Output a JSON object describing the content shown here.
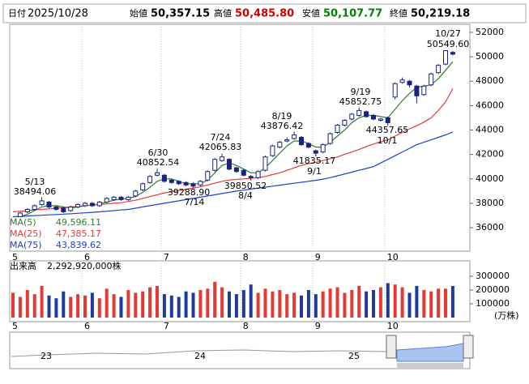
{
  "header": {
    "date_label": "日付",
    "date": "2025/10/28",
    "items": [
      {
        "label": "始値",
        "value": "50,357.15",
        "color": "#000000"
      },
      {
        "label": "高値",
        "value": "50,485.80",
        "color": "#d00000"
      },
      {
        "label": "安値",
        "value": "50,107.77",
        "color": "#008000"
      },
      {
        "label": "終値",
        "value": "50,219.18",
        "color": "#000000"
      }
    ]
  },
  "chart_data": {
    "type": "candlestick",
    "categories": [
      "5",
      null,
      null,
      null,
      null,
      null,
      null,
      null,
      null,
      null,
      "6",
      null,
      null,
      null,
      null,
      null,
      null,
      null,
      null,
      null,
      null,
      "7",
      null,
      null,
      null,
      null,
      null,
      null,
      null,
      null,
      null,
      null,
      "8",
      null,
      null,
      null,
      null,
      null,
      null,
      null,
      null,
      null,
      "9",
      null,
      null,
      null,
      null,
      null,
      null,
      null,
      null,
      null,
      "10",
      null,
      null,
      null,
      null,
      null,
      null,
      null,
      null,
      null
    ],
    "open": [
      36600,
      36900,
      37300,
      37500,
      37900,
      38100,
      37700,
      37600,
      37400,
      37700,
      37800,
      38000,
      37800,
      38100,
      38300,
      38500,
      38300,
      38600,
      39100,
      39700,
      40300,
      40300,
      39900,
      39800,
      39700,
      39600,
      39500,
      39900,
      40700,
      41500,
      41600,
      40900,
      40700,
      40200,
      40100,
      40700,
      41900,
      42600,
      43100,
      43300,
      43400,
      42900,
      42300,
      42200,
      42900,
      43800,
      44400,
      44900,
      45200,
      45500,
      45200,
      44800,
      45000,
      46700,
      47900,
      48000,
      47600,
      46900,
      47700,
      48700,
      49400,
      50357.15
    ],
    "high": [
      36900,
      37300,
      37600,
      37900,
      38494.06,
      38200,
      37800,
      37700,
      37800,
      38000,
      38100,
      38100,
      38200,
      38500,
      38600,
      38600,
      38600,
      39100,
      39700,
      40300,
      40852.54,
      40400,
      40000,
      39900,
      39800,
      39700,
      39900,
      40700,
      41700,
      42065.83,
      41700,
      41000,
      40800,
      40300,
      40700,
      41900,
      42800,
      43100,
      43400,
      43876.42,
      43500,
      43000,
      42400,
      42900,
      43800,
      44500,
      44900,
      45400,
      45852.75,
      45600,
      45300,
      45000,
      45100,
      47900,
      48300,
      48100,
      47700,
      47700,
      48700,
      49400,
      50549.6,
      50485.8
    ],
    "low": [
      36400,
      36800,
      37200,
      37400,
      37800,
      37600,
      37400,
      37200,
      37300,
      37600,
      37700,
      37700,
      37700,
      38000,
      38200,
      38200,
      38200,
      38500,
      39000,
      39600,
      40200,
      39700,
      39600,
      39500,
      39400,
      39288.9,
      39400,
      39800,
      40600,
      41400,
      40700,
      40500,
      40200,
      39850.52,
      40000,
      40600,
      41800,
      42500,
      43000,
      43200,
      42700,
      42500,
      41835.17,
      42100,
      42800,
      43700,
      44300,
      44800,
      45100,
      45000,
      44800,
      44700,
      44357.65,
      46500,
      47800,
      47500,
      46200,
      46800,
      47600,
      48600,
      49300,
      50107.77
    ],
    "close": [
      36800,
      37200,
      37500,
      37800,
      38200,
      37700,
      37500,
      37300,
      37700,
      37900,
      38000,
      37800,
      38100,
      38400,
      38500,
      38300,
      38500,
      39000,
      39600,
      40200,
      40500,
      39800,
      39700,
      39600,
      39500,
      39400,
      39800,
      40600,
      41600,
      41800,
      40800,
      40600,
      40300,
      40100,
      40600,
      41800,
      42700,
      43000,
      43200,
      43600,
      42800,
      42600,
      42100,
      42800,
      43700,
      44400,
      44800,
      45300,
      45600,
      45100,
      44900,
      44900,
      44600,
      47800,
      48100,
      47700,
      46800,
      47600,
      48600,
      49300,
      50500,
      50219.18
    ],
    "ylim": [
      34080,
      52660
    ],
    "yticks": [
      36000,
      38000,
      40000,
      42000,
      44000,
      46000,
      48000,
      50000,
      52000
    ],
    "up_color": "#ffffff",
    "down_color": "#1a237e",
    "series": [
      {
        "name": "MA(5)",
        "value_label": "49,596.11",
        "color": "#2e7d32",
        "values": [
          36700,
          36900,
          37100,
          37400,
          37700,
          37800,
          37800,
          37700,
          37600,
          37700,
          37800,
          37850,
          37950,
          38100,
          38250,
          38350,
          38400,
          38550,
          38900,
          39300,
          39800,
          40000,
          40000,
          39800,
          39600,
          39600,
          39600,
          39900,
          40500,
          41100,
          41300,
          41100,
          40800,
          40500,
          40500,
          40900,
          41500,
          42100,
          42700,
          43100,
          43100,
          42900,
          42600,
          42600,
          43000,
          43500,
          44000,
          44600,
          45000,
          45200,
          45200,
          45100,
          45000,
          45700,
          46400,
          47000,
          47500,
          47600,
          47700,
          48200,
          48900,
          49596.11
        ]
      },
      {
        "name": "MA(25)",
        "value_label": "47,385.17",
        "color": "#e53935",
        "values": [
          37300,
          37350,
          37400,
          37450,
          37500,
          37550,
          37600,
          37650,
          37700,
          37750,
          37800,
          37850,
          37900,
          37950,
          38000,
          38050,
          38150,
          38250,
          38400,
          38550,
          38700,
          38850,
          38950,
          39050,
          39150,
          39250,
          39350,
          39500,
          39650,
          39800,
          39900,
          39950,
          40000,
          40050,
          40100,
          40200,
          40350,
          40500,
          40700,
          40900,
          41100,
          41250,
          41350,
          41500,
          41650,
          41800,
          42000,
          42200,
          42400,
          42650,
          42850,
          43050,
          43200,
          43500,
          43800,
          44100,
          44350,
          44650,
          45000,
          45600,
          46300,
          47385.17
        ]
      },
      {
        "name": "MA(75)",
        "value_label": "43,839.62",
        "color": "#1e40d0",
        "values": [
          36900,
          36930,
          36960,
          36990,
          37020,
          37050,
          37080,
          37110,
          37140,
          37180,
          37220,
          37260,
          37300,
          37350,
          37400,
          37450,
          37500,
          37600,
          37700,
          37800,
          37900,
          38000,
          38100,
          38200,
          38300,
          38400,
          38500,
          38600,
          38700,
          38800,
          38900,
          39000,
          39080,
          39160,
          39240,
          39320,
          39400,
          39480,
          39560,
          39640,
          39720,
          39800,
          39880,
          39980,
          40100,
          40250,
          40400,
          40550,
          40700,
          40850,
          41000,
          41300,
          41600,
          41900,
          42200,
          42500,
          42800,
          43000,
          43200,
          43400,
          43600,
          43839.62
        ]
      }
    ],
    "annotations": [
      {
        "date": "5/13",
        "text": "38494.06"
      },
      {
        "date": "6/30",
        "text": "40852.54"
      },
      {
        "date": "7/24",
        "text": "42065.83"
      },
      {
        "date": "8/19",
        "text": "43876.42"
      },
      {
        "date": "9/19",
        "text": "45852.75"
      },
      {
        "date": "10/27",
        "text": "50549.60"
      },
      {
        "date": "7/14",
        "text": "39288.90"
      },
      {
        "date": "8/4",
        "text": "39850.52"
      },
      {
        "date": "9/1",
        "text": "41835.17"
      },
      {
        "date": "10/1",
        "text": "44357.65"
      }
    ],
    "volume": {
      "title": "出来高",
      "total": "2,292,920,000株",
      "unit": "(万株)",
      "ylim": [
        0,
        411765
      ],
      "yticks": [
        100000,
        200000,
        300000
      ],
      "up_color": "#e53935",
      "down_color": "#1e3a9e",
      "values": [
        180000,
        150000,
        200000,
        170000,
        230000,
        160000,
        140000,
        190000,
        150000,
        170000,
        160000,
        180000,
        140000,
        210000,
        170000,
        150000,
        200000,
        180000,
        190000,
        220000,
        230000,
        170000,
        160000,
        150000,
        190000,
        180000,
        200000,
        210000,
        260000,
        220000,
        190000,
        170000,
        200000,
        240000,
        180000,
        210000,
        190000,
        200000,
        170000,
        180000,
        160000,
        200000,
        170000,
        190000,
        210000,
        220000,
        180000,
        200000,
        230000,
        190000,
        200000,
        220000,
        250000,
        240000,
        220000,
        180000,
        230000,
        200000,
        190000,
        210000,
        210000,
        229292
      ]
    }
  },
  "navigator": {
    "labels": [
      "23",
      "24",
      "25"
    ]
  }
}
